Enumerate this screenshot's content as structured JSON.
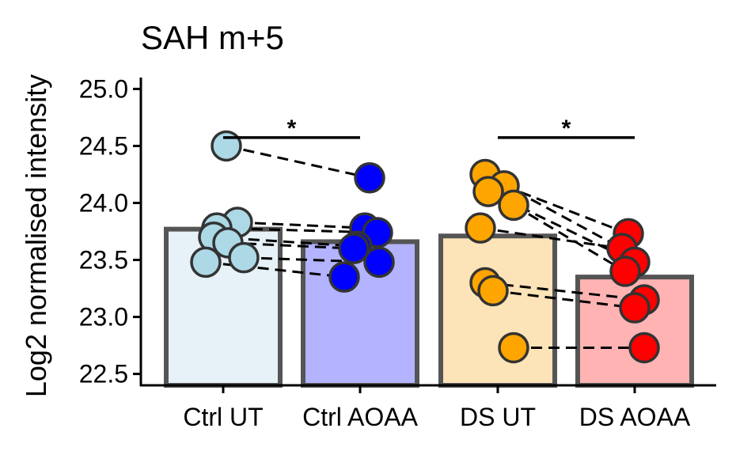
{
  "chart_data": {
    "type": "bar",
    "title": "SAH m+5",
    "xlabel": "",
    "ylabel": "Log2 normalised intensity",
    "ylim": [
      22.4,
      25.1
    ],
    "yticks": [
      22.5,
      23.0,
      23.5,
      24.0,
      24.5,
      25.0
    ],
    "ytick_labels": [
      "22.5",
      "23.0",
      "23.5",
      "24.0",
      "24.5",
      "25.0"
    ],
    "categories": [
      "Ctrl UT",
      "Ctrl AOAA",
      "DS UT",
      "DS AOAA"
    ],
    "values": [
      23.77,
      23.66,
      23.71,
      23.35
    ],
    "bar_colors": [
      "#e6f1f8",
      "#b3b3ff",
      "#fde3b8",
      "#ffb3b3"
    ],
    "point_colors": [
      "#add8e6",
      "#0000ff",
      "#ffa500",
      "#ff0000"
    ],
    "points": [
      [
        24.5,
        23.83,
        23.78,
        23.7,
        23.65,
        23.52,
        23.48
      ],
      [
        24.22,
        23.78,
        23.74,
        23.62,
        23.6,
        23.48,
        23.35
      ],
      [
        24.25,
        24.15,
        24.1,
        23.98,
        23.78,
        23.3,
        23.23,
        22.73
      ],
      [
        23.73,
        23.6,
        23.48,
        23.4,
        23.15,
        23.08,
        22.73
      ]
    ],
    "pairs": [
      {
        "from": [
          0,
          0
        ],
        "to": [
          1,
          0
        ]
      },
      {
        "from": [
          0,
          1
        ],
        "to": [
          1,
          1
        ]
      },
      {
        "from": [
          0,
          2
        ],
        "to": [
          1,
          2
        ]
      },
      {
        "from": [
          0,
          3
        ],
        "to": [
          1,
          3
        ]
      },
      {
        "from": [
          0,
          4
        ],
        "to": [
          1,
          4
        ]
      },
      {
        "from": [
          0,
          5
        ],
        "to": [
          1,
          5
        ]
      },
      {
        "from": [
          0,
          6
        ],
        "to": [
          1,
          6
        ]
      },
      {
        "from": [
          2,
          0
        ],
        "to": [
          3,
          1
        ]
      },
      {
        "from": [
          2,
          1
        ],
        "to": [
          3,
          0
        ]
      },
      {
        "from": [
          2,
          2
        ],
        "to": [
          3,
          2
        ]
      },
      {
        "from": [
          2,
          3
        ],
        "to": [
          3,
          3
        ]
      },
      {
        "from": [
          2,
          4
        ],
        "to": [
          3,
          1
        ]
      },
      {
        "from": [
          2,
          5
        ],
        "to": [
          3,
          4
        ]
      },
      {
        "from": [
          2,
          6
        ],
        "to": [
          3,
          5
        ]
      },
      {
        "from": [
          2,
          7
        ],
        "to": [
          3,
          6
        ]
      }
    ],
    "significance": [
      {
        "from": 0,
        "to": 1,
        "y": 24.65,
        "label": "*"
      },
      {
        "from": 2,
        "to": 3,
        "y": 24.65,
        "label": "*"
      }
    ],
    "grid": false,
    "legend": "none"
  }
}
